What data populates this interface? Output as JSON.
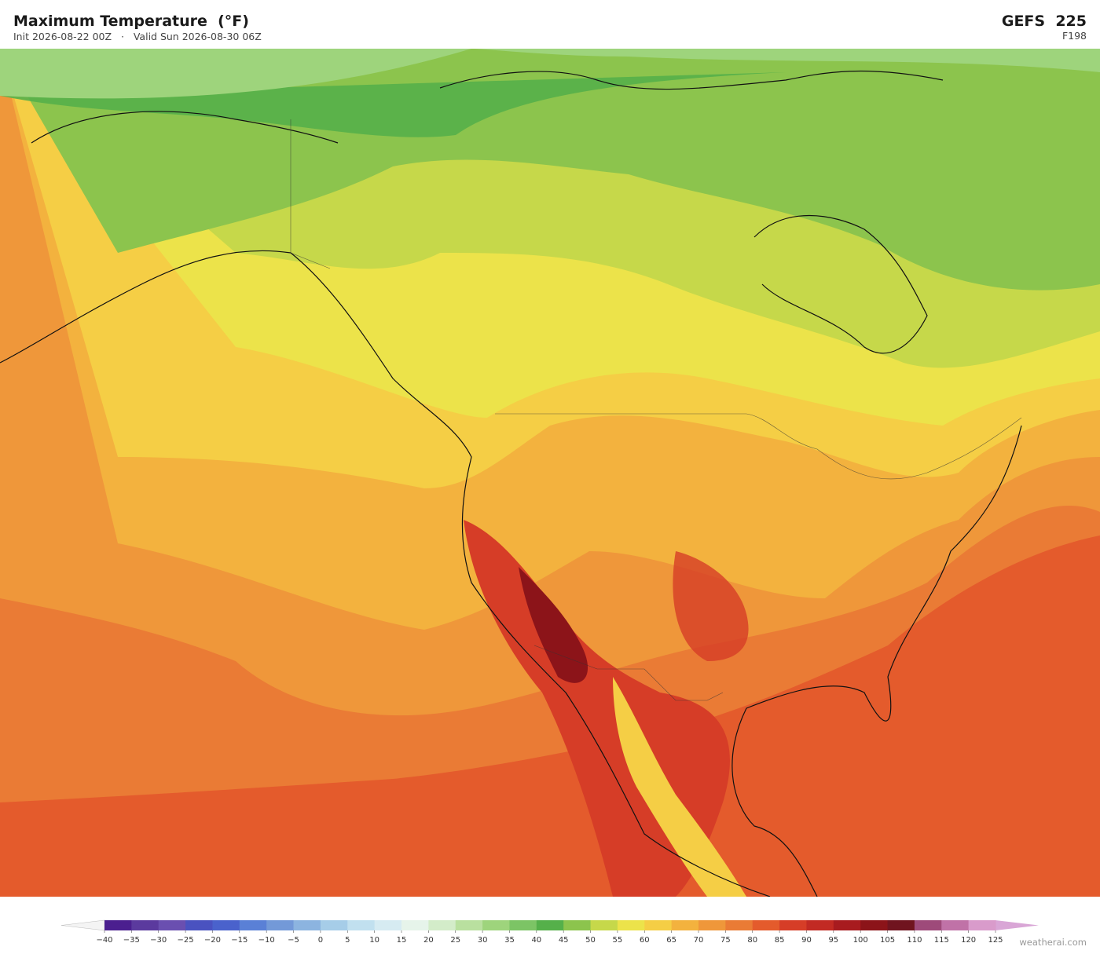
{
  "header": {
    "title": "Maximum Temperature  (°F)",
    "subtitle": "Init 2026-08-22 00Z   ·   Valid Sun 2026-08-30 06Z",
    "model": "GEFS  225",
    "forecast_hour": "F198"
  },
  "colorbar": {
    "ticks": [
      {
        "value": -40,
        "label": "−40"
      },
      {
        "value": -35,
        "label": "−35"
      },
      {
        "value": -30,
        "label": "−30"
      },
      {
        "value": -25,
        "label": "−25"
      },
      {
        "value": -20,
        "label": "−20"
      },
      {
        "value": -15,
        "label": "−15"
      },
      {
        "value": -10,
        "label": "−10"
      },
      {
        "value": -5,
        "label": "−5"
      },
      0,
      5,
      10,
      15,
      20,
      25,
      30,
      35,
      40,
      45,
      50,
      55,
      60,
      65,
      70,
      75,
      80,
      85,
      90,
      95,
      100,
      105,
      110,
      115,
      120,
      125
    ],
    "colors": [
      "#4b1f8f",
      "#5b3a9e",
      "#6a4fb0",
      "#4a52c0",
      "#4a62cc",
      "#5a80d6",
      "#7399d8",
      "#8cb4e0",
      "#a6cde8",
      "#c1e0ef",
      "#d6ebf2",
      "#e6f4ea",
      "#d3ecc9",
      "#b9e09f",
      "#9ed47c",
      "#7cc465",
      "#55b04a",
      "#8cc44d",
      "#c6d84a",
      "#ece34a",
      "#f5ce45",
      "#f3b23e",
      "#ef973a",
      "#ea7b35",
      "#e45b2c",
      "#d63d27",
      "#c22a23",
      "#a81b1f",
      "#8c1419",
      "#70141f",
      "#9e4a7a",
      "#c072a7",
      "#d99bcb"
    ],
    "under_color": "#f4f4f4",
    "over_color": "#d9a6d6"
  },
  "credit": "weatherai.com"
}
